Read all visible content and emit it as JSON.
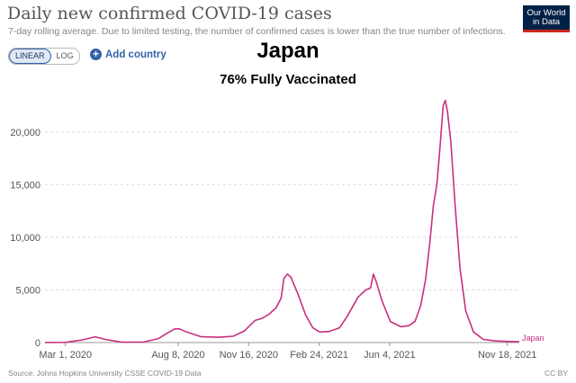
{
  "header": {
    "title": "Daily new confirmed COVID-19 cases",
    "subtitle": "7-day rolling average. Due to limited testing, the number of confirmed cases is lower than the true number of infections.",
    "logo_lines": [
      "Our World",
      "in Data"
    ]
  },
  "controls": {
    "linear_label": "LINEAR",
    "log_label": "LOG",
    "add_country_label": "Add country"
  },
  "overlay": {
    "title": "Japan",
    "subtitle": "76% Fully Vaccinated"
  },
  "footer": {
    "source": "Source: Johns Hopkins University CSSE COVID-19 Data",
    "license": "CC BY"
  },
  "colors": {
    "series": "#c8307f",
    "grid": "#dddddd",
    "axis": "#555555"
  },
  "chart_data": {
    "type": "line",
    "title": "Daily new confirmed COVID-19 cases",
    "y_scale": "linear",
    "ylim": [
      0,
      24000
    ],
    "xlim": [
      "2020-02-01",
      "2021-12-05"
    ],
    "y_ticks": [
      0,
      5000,
      10000,
      15000,
      20000
    ],
    "y_tick_labels": [
      "0",
      "5,000",
      "10,000",
      "15,000",
      "20,000"
    ],
    "x_ticks": [
      "2020-03-01",
      "2020-08-08",
      "2020-11-16",
      "2021-02-24",
      "2021-06-04",
      "2021-11-18"
    ],
    "x_tick_labels": [
      "Mar 1, 2020",
      "Aug 8, 2020",
      "Nov 16, 2020",
      "Feb 24, 2021",
      "Jun 4, 2021",
      "Nov 18, 2021"
    ],
    "grid": true,
    "series": [
      {
        "name": "Japan",
        "x": [
          "2020-02-01",
          "2020-03-01",
          "2020-03-25",
          "2020-04-12",
          "2020-04-30",
          "2020-05-20",
          "2020-06-20",
          "2020-07-10",
          "2020-07-25",
          "2020-08-03",
          "2020-08-10",
          "2020-08-20",
          "2020-09-10",
          "2020-10-05",
          "2020-10-25",
          "2020-11-10",
          "2020-11-25",
          "2020-12-05",
          "2020-12-15",
          "2020-12-25",
          "2021-01-01",
          "2021-01-05",
          "2021-01-10",
          "2021-01-15",
          "2021-01-25",
          "2021-02-05",
          "2021-02-15",
          "2021-02-25",
          "2021-03-10",
          "2021-03-25",
          "2021-04-05",
          "2021-04-20",
          "2021-05-01",
          "2021-05-08",
          "2021-05-12",
          "2021-05-16",
          "2021-05-24",
          "2021-06-05",
          "2021-06-20",
          "2021-07-01",
          "2021-07-10",
          "2021-07-18",
          "2021-07-25",
          "2021-07-31",
          "2021-08-05",
          "2021-08-10",
          "2021-08-15",
          "2021-08-19",
          "2021-08-22",
          "2021-08-25",
          "2021-08-30",
          "2021-09-05",
          "2021-09-12",
          "2021-09-20",
          "2021-10-01",
          "2021-10-15",
          "2021-11-01",
          "2021-11-20",
          "2021-12-05"
        ],
        "y": [
          5,
          20,
          250,
          550,
          250,
          40,
          50,
          350,
          950,
          1300,
          1300,
          1000,
          550,
          500,
          600,
          1100,
          2100,
          2300,
          2700,
          3300,
          4200,
          6100,
          6500,
          6200,
          4600,
          2600,
          1400,
          1000,
          1050,
          1400,
          2500,
          4300,
          5000,
          5200,
          6500,
          5800,
          4000,
          2000,
          1500,
          1600,
          2000,
          3500,
          6000,
          9500,
          13000,
          15000,
          19000,
          22500,
          23000,
          22000,
          19000,
          13000,
          7000,
          3000,
          1000,
          300,
          150,
          100,
          80
        ]
      }
    ],
    "series_end_label": "Japan"
  }
}
